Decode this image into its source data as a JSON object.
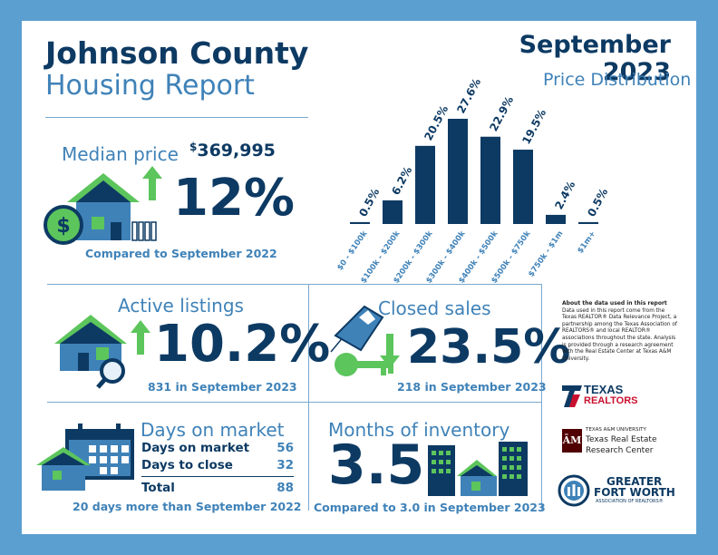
{
  "header": {
    "title_line1": "Johnson County",
    "title_line2": "Housing Report",
    "month": "September",
    "year": "2023"
  },
  "median": {
    "label": "Median price",
    "currency": "$",
    "value": "369,995",
    "change": "12%",
    "compared": "Compared to September 2022"
  },
  "chart_data": {
    "type": "bar",
    "title": "Price Distribution",
    "categories": [
      "$0 - $100k",
      "$100k - $200k",
      "$200k - $300k",
      "$300k - $400k",
      "$400k - $500k",
      "$500k - $750k",
      "$750k - $1m",
      "$1m+"
    ],
    "values": [
      0.5,
      6.2,
      20.5,
      27.6,
      22.9,
      19.5,
      2.4,
      0.5
    ],
    "data_labels": [
      "0.5%",
      "6.2%",
      "20.5%",
      "27.6%",
      "22.9%",
      "19.5%",
      "2.4%",
      "0.5%"
    ],
    "ylim": [
      0,
      27.6
    ],
    "bar_color": "#0d3a63"
  },
  "active": {
    "label": "Active listings",
    "change": "10.2%",
    "detail": "831 in September 2023"
  },
  "closed": {
    "label": "Closed sales",
    "change": "23.5%",
    "detail": "218 in September 2023"
  },
  "about": {
    "heading": "About the data used in this report",
    "body": "Data used in this report come from the Texas REALTOR® Data Relevance Project, a partnership among the Texas Association of REALTORS® and local REALTOR® associations throughout the state. Analysis is provided through a research agreement with the Real Estate Center at Texas A&M University."
  },
  "dom": {
    "label": "Days on market",
    "rows": [
      {
        "name": "Days on market",
        "value": "56"
      },
      {
        "name": "Days to close",
        "value": "32"
      }
    ],
    "total_name": "Total",
    "total_value": "88",
    "detail": "20 days more than September 2022"
  },
  "inventory": {
    "label": "Months of inventory",
    "value": "3.5",
    "detail": "Compared to 3.0 in September 2023"
  },
  "logos": {
    "texas_realtors_1": "TEXAS",
    "texas_realtors_2": "REALTORS",
    "tamu_1": "TEXAS A&M UNIVERSITY",
    "tamu_2": "Texas Real Estate",
    "tamu_3": "Research Center",
    "gfw_1": "GREATER",
    "gfw_2": "FORT WORTH",
    "gfw_3": "ASSOCIATION OF REALTORS®"
  },
  "colors": {
    "frame": "#5b9fd0",
    "navy": "#0d3a63",
    "blue": "#3f82b8",
    "green": "#5cc55c",
    "red": "#c8102e",
    "maroon": "#500000"
  }
}
